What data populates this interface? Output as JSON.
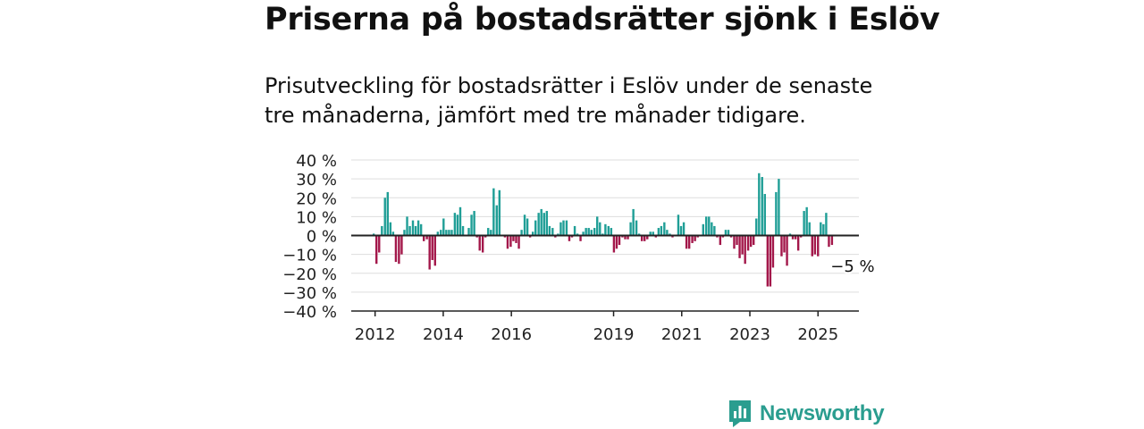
{
  "title": "Priserna på bostadsrätter sjönk i Eslöv",
  "subtitle": "Prisutveckling för bostadsrätter i Eslöv under de senaste tre månaderna, jämfört med tre månader tidigare.",
  "brand": {
    "name": "Newsworthy",
    "color": "#2a9d8f"
  },
  "colors": {
    "positive": "#1f9e96",
    "negative": "#a3174a",
    "grid": "#dddddd",
    "axis": "#222222"
  },
  "chart_data": {
    "type": "bar",
    "title": "",
    "xlabel": "",
    "ylabel": "",
    "ylim": [
      -40,
      40
    ],
    "yticks": [
      40,
      30,
      20,
      10,
      0,
      -10,
      -20,
      -30,
      -40
    ],
    "ytick_labels": [
      "40 %",
      "30 %",
      "20 %",
      "10 %",
      "0 %",
      "−10 %",
      "−20 %",
      "−30 %",
      "−40 %"
    ],
    "xticks": [
      {
        "label": "2012",
        "x": 2012.0
      },
      {
        "label": "2014",
        "x": 2014.0
      },
      {
        "label": "2016",
        "x": 2016.0
      },
      {
        "label": "2019",
        "x": 2019.0
      },
      {
        "label": "2021",
        "x": 2021.0
      },
      {
        "label": "2023",
        "x": 2023.0
      },
      {
        "label": "2025",
        "x": 2025.0
      }
    ],
    "x_domain": [
      2011.3,
      2026.2
    ],
    "annotation": {
      "text": "−5 %",
      "x": 2025.42,
      "y": -5
    },
    "series": [
      {
        "x": [
          2011.96,
          2012.04,
          2012.12,
          2012.2,
          2012.29,
          2012.37,
          2012.45,
          2012.53,
          2012.61,
          2012.7,
          2012.78,
          2012.86,
          2012.94,
          2013.02,
          2013.11,
          2013.19,
          2013.27,
          2013.35,
          2013.43,
          2013.52,
          2013.6,
          2013.68,
          2013.76,
          2013.84,
          2013.93,
          2014.01,
          2014.09,
          2014.17,
          2014.25,
          2014.34,
          2014.42,
          2014.5,
          2014.58,
          2014.66,
          2014.75,
          2014.83,
          2014.91,
          2014.99,
          2015.07,
          2015.16,
          2015.24,
          2015.32,
          2015.4,
          2015.48,
          2015.57,
          2015.65,
          2015.73,
          2015.81,
          2015.89,
          2015.98,
          2016.06,
          2016.14,
          2016.22,
          2016.3,
          2016.39,
          2016.47,
          2016.55,
          2016.63,
          2016.71,
          2016.8,
          2016.88,
          2016.96,
          2017.04,
          2017.12,
          2017.21,
          2017.29,
          2017.37,
          2017.45,
          2017.53,
          2017.62,
          2017.7,
          2017.78,
          2017.86,
          2017.94,
          2018.03,
          2018.11,
          2018.19,
          2018.27,
          2018.35,
          2018.44,
          2018.52,
          2018.6,
          2018.68,
          2018.76,
          2018.85,
          2018.93,
          2019.01,
          2019.09,
          2019.17,
          2019.26,
          2019.34,
          2019.42,
          2019.5,
          2019.58,
          2019.67,
          2019.75,
          2019.83,
          2019.91,
          2019.99,
          2020.08,
          2020.16,
          2020.24,
          2020.32,
          2020.4,
          2020.49,
          2020.57,
          2020.65,
          2020.73,
          2020.81,
          2020.9,
          2020.98,
          2021.06,
          2021.14,
          2021.22,
          2021.31,
          2021.39,
          2021.47,
          2021.55,
          2021.63,
          2021.72,
          2021.8,
          2021.88,
          2021.96,
          2022.04,
          2022.13,
          2022.21,
          2022.29,
          2022.37,
          2022.45,
          2022.54,
          2022.62,
          2022.7,
          2022.78,
          2022.86,
          2022.95,
          2023.03,
          2023.11,
          2023.19,
          2023.27,
          2023.36,
          2023.44,
          2023.52,
          2023.6,
          2023.68,
          2023.77,
          2023.85,
          2023.93,
          2024.01,
          2024.09,
          2024.18,
          2024.26,
          2024.34,
          2024.42,
          2024.5,
          2024.59,
          2024.67,
          2024.75,
          2024.83,
          2024.91,
          2025.0,
          2025.08,
          2025.16,
          2025.24,
          2025.32,
          2025.41
        ],
        "values": [
          1,
          -15,
          -9,
          5,
          20,
          23,
          7,
          2,
          -14,
          -15,
          -10,
          3,
          10,
          5,
          8,
          5,
          8,
          6,
          -3,
          -2,
          -18,
          -13,
          -16,
          2,
          3,
          9,
          3,
          3,
          3,
          12,
          11,
          15,
          5,
          0,
          4,
          11,
          13,
          -1,
          -8,
          -9,
          -1,
          4,
          3,
          25,
          16,
          24,
          0,
          -1,
          -7,
          -6,
          -3,
          -4,
          -7,
          3,
          11,
          9,
          -1,
          2,
          8,
          12,
          14,
          12,
          13,
          5,
          4,
          -1,
          1,
          7,
          8,
          8,
          -3,
          -1,
          5,
          1,
          -3,
          2,
          4,
          4,
          3,
          4,
          10,
          7,
          1,
          6,
          5,
          4,
          -9,
          -7,
          -5,
          -1,
          -2,
          -2,
          7,
          14,
          8,
          1,
          -3,
          -3,
          -2,
          2,
          2,
          -1,
          4,
          5,
          7,
          3,
          1,
          -1,
          0,
          11,
          5,
          7,
          -7,
          -7,
          -4,
          -3,
          -1,
          0,
          6,
          10,
          10,
          7,
          5,
          -1,
          -5,
          -1,
          3,
          3,
          -1,
          -7,
          -5,
          -12,
          -10,
          -15,
          -8,
          -6,
          -5,
          9,
          33,
          31,
          22,
          -27,
          -27,
          -17,
          23,
          30,
          -11,
          -9,
          -16,
          1,
          -2,
          -2,
          -8,
          -1,
          13,
          15,
          7,
          -11,
          -10,
          -11,
          7,
          6,
          12,
          -6,
          -5
        ]
      }
    ]
  }
}
